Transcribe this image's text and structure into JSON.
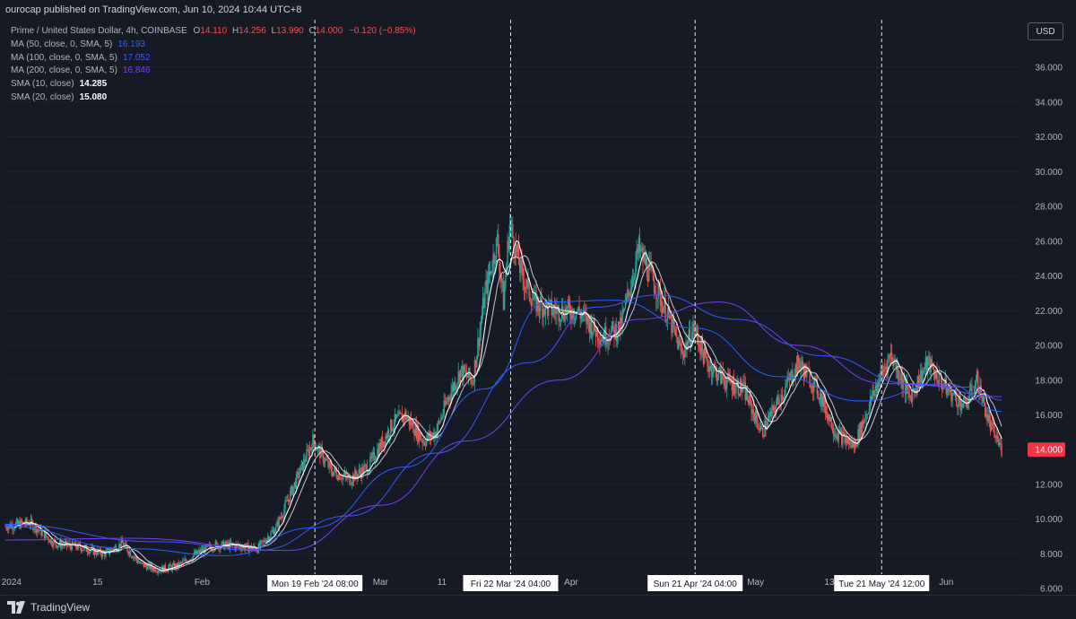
{
  "header": {
    "published": "ourocap published on TradingView.com, Jun 10, 2024 10:44 UTC+8"
  },
  "legend": {
    "title": "Prime / United States Dollar, 4h, COINBASE",
    "o_label": "O",
    "o": "14.110",
    "h_label": "H",
    "h": "14.256",
    "l_label": "L",
    "l": "13.990",
    "c_label": "C",
    "c": "14.000",
    "change": "−0.120 (−0.85%)",
    "indicators": [
      {
        "label": "MA (50, close, 0, SMA, 5)",
        "value": "16.193",
        "color": "#2962ff"
      },
      {
        "label": "MA (100, close, 0, SMA, 5)",
        "value": "17.052",
        "color": "#3d5afe"
      },
      {
        "label": "MA (200, close, 0, SMA, 5)",
        "value": "16.846",
        "color": "#7e3ff2"
      },
      {
        "label": "SMA (10, close)",
        "value": "14.285",
        "color": "#ffffff"
      },
      {
        "label": "SMA (20, close)",
        "value": "15.080",
        "color": "#ffffff"
      }
    ]
  },
  "currency_button": "USD",
  "footer": {
    "brand": "TradingView"
  },
  "colors": {
    "up": "#26a69a",
    "down": "#ef5350",
    "background": "#161a25",
    "text": "#b2b5be",
    "price_tag": "#f23645"
  },
  "chart_data": {
    "type": "candlestick",
    "symbol": "Prime / United States Dollar",
    "interval": "4h",
    "exchange": "COINBASE",
    "y_axis": {
      "position": "right",
      "range": [
        5.0,
        37.5
      ],
      "ticks": [
        "6.000",
        "8.000",
        "10.000",
        "12.000",
        "14.000",
        "16.000",
        "18.000",
        "20.000",
        "22.000",
        "24.000",
        "26.000",
        "28.000",
        "30.000",
        "32.000",
        "34.000",
        "36.000"
      ]
    },
    "x_axis": {
      "range": [
        "2023-12-31",
        "2024-06-10"
      ],
      "ticks": [
        {
          "date": "2024-01-01",
          "label": "2024"
        },
        {
          "date": "2024-01-15",
          "label": "15"
        },
        {
          "date": "2024-02-01",
          "label": "Feb"
        },
        {
          "date": "2024-03-01",
          "label": "Mar"
        },
        {
          "date": "2024-03-11",
          "label": "11"
        },
        {
          "date": "2024-04-01",
          "label": "Apr"
        },
        {
          "date": "2024-05-01",
          "label": "May"
        },
        {
          "date": "2024-05-13",
          "label": "13"
        },
        {
          "date": "2024-06-01",
          "label": "Jun"
        }
      ]
    },
    "markers": [
      {
        "date": "2024-02-19 08:00",
        "label": "Mon 19 Feb '24   08:00"
      },
      {
        "date": "2024-03-22 04:00",
        "label": "Fri 22 Mar '24   04:00"
      },
      {
        "date": "2024-04-21 04:00",
        "label": "Sun 21 Apr '24   04:00"
      },
      {
        "date": "2024-05-21 12:00",
        "label": "Tue 21 May '24   12:00"
      }
    ],
    "last_price": 14.0,
    "last_price_label": "14.000",
    "price_path": [
      {
        "date": "2023-12-31",
        "price": 9.6
      },
      {
        "date": "2024-01-04",
        "price": 9.8
      },
      {
        "date": "2024-01-08",
        "price": 8.6
      },
      {
        "date": "2024-01-12",
        "price": 8.4
      },
      {
        "date": "2024-01-16",
        "price": 8.0
      },
      {
        "date": "2024-01-19",
        "price": 8.6
      },
      {
        "date": "2024-01-22",
        "price": 7.4
      },
      {
        "date": "2024-01-25",
        "price": 7.1
      },
      {
        "date": "2024-01-28",
        "price": 7.3
      },
      {
        "date": "2024-01-31",
        "price": 8.0
      },
      {
        "date": "2024-02-03",
        "price": 8.5
      },
      {
        "date": "2024-02-06",
        "price": 8.5
      },
      {
        "date": "2024-02-10",
        "price": 8.3
      },
      {
        "date": "2024-02-13",
        "price": 9.5
      },
      {
        "date": "2024-02-16",
        "price": 12.0
      },
      {
        "date": "2024-02-19",
        "price": 14.5
      },
      {
        "date": "2024-02-22",
        "price": 12.8
      },
      {
        "date": "2024-02-25",
        "price": 12.3
      },
      {
        "date": "2024-02-28",
        "price": 13.0
      },
      {
        "date": "2024-03-03",
        "price": 15.5
      },
      {
        "date": "2024-03-05",
        "price": 16.0
      },
      {
        "date": "2024-03-08",
        "price": 14.5
      },
      {
        "date": "2024-03-10",
        "price": 15.0
      },
      {
        "date": "2024-03-12",
        "price": 17.0
      },
      {
        "date": "2024-03-14",
        "price": 18.5
      },
      {
        "date": "2024-03-16",
        "price": 18.0
      },
      {
        "date": "2024-03-18",
        "price": 23.0
      },
      {
        "date": "2024-03-20",
        "price": 26.0
      },
      {
        "date": "2024-03-21",
        "price": 22.5
      },
      {
        "date": "2024-03-22",
        "price": 27.0
      },
      {
        "date": "2024-03-24",
        "price": 24.0
      },
      {
        "date": "2024-03-26",
        "price": 22.5
      },
      {
        "date": "2024-03-29",
        "price": 22.0
      },
      {
        "date": "2024-04-02",
        "price": 22.0
      },
      {
        "date": "2024-04-06",
        "price": 20.5
      },
      {
        "date": "2024-04-09",
        "price": 21.0
      },
      {
        "date": "2024-04-12",
        "price": 25.5
      },
      {
        "date": "2024-04-14",
        "price": 24.0
      },
      {
        "date": "2024-04-17",
        "price": 21.5
      },
      {
        "date": "2024-04-19",
        "price": 19.5
      },
      {
        "date": "2024-04-21",
        "price": 21.0
      },
      {
        "date": "2024-04-23",
        "price": 19.0
      },
      {
        "date": "2024-04-26",
        "price": 18.0
      },
      {
        "date": "2024-04-29",
        "price": 17.5
      },
      {
        "date": "2024-05-02",
        "price": 15.0
      },
      {
        "date": "2024-05-05",
        "price": 17.0
      },
      {
        "date": "2024-05-08",
        "price": 19.0
      },
      {
        "date": "2024-05-11",
        "price": 17.5
      },
      {
        "date": "2024-05-14",
        "price": 15.0
      },
      {
        "date": "2024-05-17",
        "price": 14.2
      },
      {
        "date": "2024-05-21",
        "price": 18.0
      },
      {
        "date": "2024-05-23",
        "price": 19.5
      },
      {
        "date": "2024-05-26",
        "price": 17.0
      },
      {
        "date": "2024-05-29",
        "price": 19.0
      },
      {
        "date": "2024-06-01",
        "price": 17.5
      },
      {
        "date": "2024-06-04",
        "price": 16.5
      },
      {
        "date": "2024-06-06",
        "price": 18.0
      },
      {
        "date": "2024-06-08",
        "price": 15.5
      },
      {
        "date": "2024-06-10",
        "price": 14.0
      }
    ],
    "series": [
      {
        "name": "MA (50, close, 0, SMA, 5)",
        "color": "#2962ff",
        "width": 1.0,
        "points": [
          {
            "date": "2023-12-31",
            "value": 9.6
          },
          {
            "date": "2024-01-20",
            "value": 8.3
          },
          {
            "date": "2024-02-05",
            "value": 7.9
          },
          {
            "date": "2024-02-19",
            "value": 9.5
          },
          {
            "date": "2024-03-05",
            "value": 13.0
          },
          {
            "date": "2024-03-18",
            "value": 17.5
          },
          {
            "date": "2024-03-28",
            "value": 22.5
          },
          {
            "date": "2024-04-08",
            "value": 22.6
          },
          {
            "date": "2024-04-21",
            "value": 21.0
          },
          {
            "date": "2024-05-05",
            "value": 18.2
          },
          {
            "date": "2024-05-18",
            "value": 16.8
          },
          {
            "date": "2024-06-01",
            "value": 17.8
          },
          {
            "date": "2024-06-10",
            "value": 16.2
          }
        ]
      },
      {
        "name": "MA (100, close, 0, SMA, 5)",
        "color": "#3d5afe",
        "width": 1.0,
        "points": [
          {
            "date": "2023-12-31",
            "value": 9.7
          },
          {
            "date": "2024-01-25",
            "value": 8.7
          },
          {
            "date": "2024-02-10",
            "value": 8.2
          },
          {
            "date": "2024-02-25",
            "value": 10.2
          },
          {
            "date": "2024-03-10",
            "value": 13.8
          },
          {
            "date": "2024-03-25",
            "value": 19.0
          },
          {
            "date": "2024-04-05",
            "value": 22.2
          },
          {
            "date": "2024-04-15",
            "value": 22.9
          },
          {
            "date": "2024-04-28",
            "value": 21.5
          },
          {
            "date": "2024-05-12",
            "value": 19.4
          },
          {
            "date": "2024-05-26",
            "value": 17.8
          },
          {
            "date": "2024-06-10",
            "value": 17.05
          }
        ]
      },
      {
        "name": "MA (200, close, 0, SMA, 5)",
        "color": "#7e3ff2",
        "width": 1.0,
        "points": [
          {
            "date": "2023-12-31",
            "value": 8.8
          },
          {
            "date": "2024-01-20",
            "value": 8.9
          },
          {
            "date": "2024-02-15",
            "value": 8.2
          },
          {
            "date": "2024-03-01",
            "value": 10.8
          },
          {
            "date": "2024-03-15",
            "value": 14.5
          },
          {
            "date": "2024-03-30",
            "value": 18.0
          },
          {
            "date": "2024-04-12",
            "value": 21.5
          },
          {
            "date": "2024-04-25",
            "value": 22.5
          },
          {
            "date": "2024-05-08",
            "value": 20.0
          },
          {
            "date": "2024-05-22",
            "value": 17.8
          },
          {
            "date": "2024-06-05",
            "value": 17.6
          },
          {
            "date": "2024-06-10",
            "value": 16.85
          }
        ]
      }
    ]
  }
}
